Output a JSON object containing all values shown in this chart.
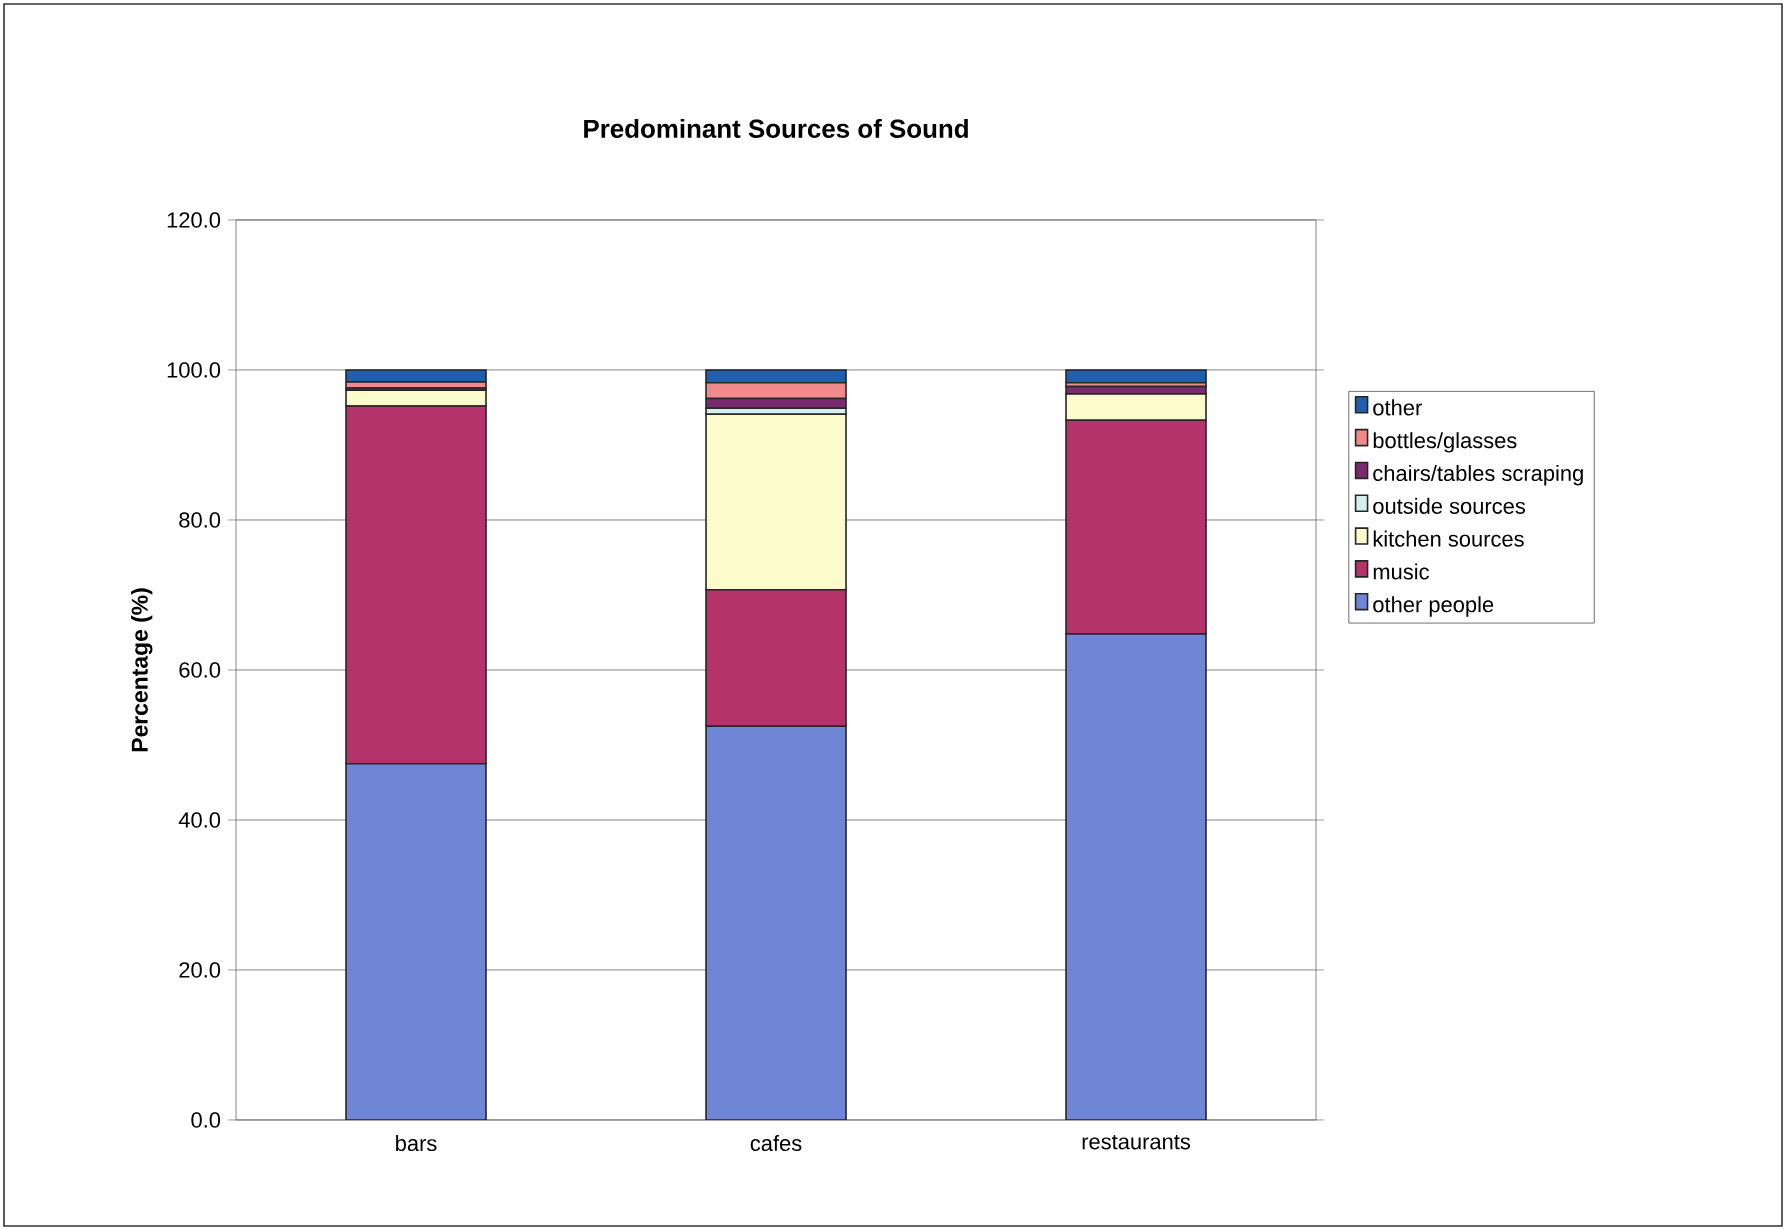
{
  "chart_data": {
    "type": "bar",
    "stacked": true,
    "title": "Predominant Sources of Sound",
    "ylabel": "Percentage (%)",
    "categories": [
      "bars",
      "cafes",
      "restaurants"
    ],
    "series": [
      {
        "name": "other people",
        "color": "#6f86d6",
        "values": [
          47.5,
          52.5,
          64.8
        ]
      },
      {
        "name": "music",
        "color": "#b5336b",
        "values": [
          47.7,
          18.2,
          28.5
        ]
      },
      {
        "name": "kitchen sources",
        "color": "#fbfbcc",
        "values": [
          2.1,
          23.4,
          3.5
        ]
      },
      {
        "name": "outside sources",
        "color": "#d6eeee",
        "values": [
          0,
          0.8,
          0
        ]
      },
      {
        "name": "chairs/tables scraping",
        "color": "#7a2a6e",
        "values": [
          0.3,
          1.3,
          1
        ]
      },
      {
        "name": "bottles/glasses",
        "color": "#f08a8a",
        "values": [
          0.8,
          2.1,
          0.5
        ]
      },
      {
        "name": "other",
        "color": "#1f5fae",
        "values": [
          1.6,
          1.7,
          1.7
        ]
      }
    ],
    "ylim": [
      0,
      120
    ],
    "yticks": [
      {
        "value": 0,
        "label": "0.0"
      },
      {
        "value": 20,
        "label": "20.0"
      },
      {
        "value": 40,
        "label": "40.0"
      },
      {
        "value": 60,
        "label": "60.0"
      },
      {
        "value": 80,
        "label": "80.0"
      },
      {
        "value": 100,
        "label": "100.0"
      },
      {
        "value": 120,
        "label": "120.0"
      }
    ],
    "grid": "y",
    "legend": "right"
  }
}
